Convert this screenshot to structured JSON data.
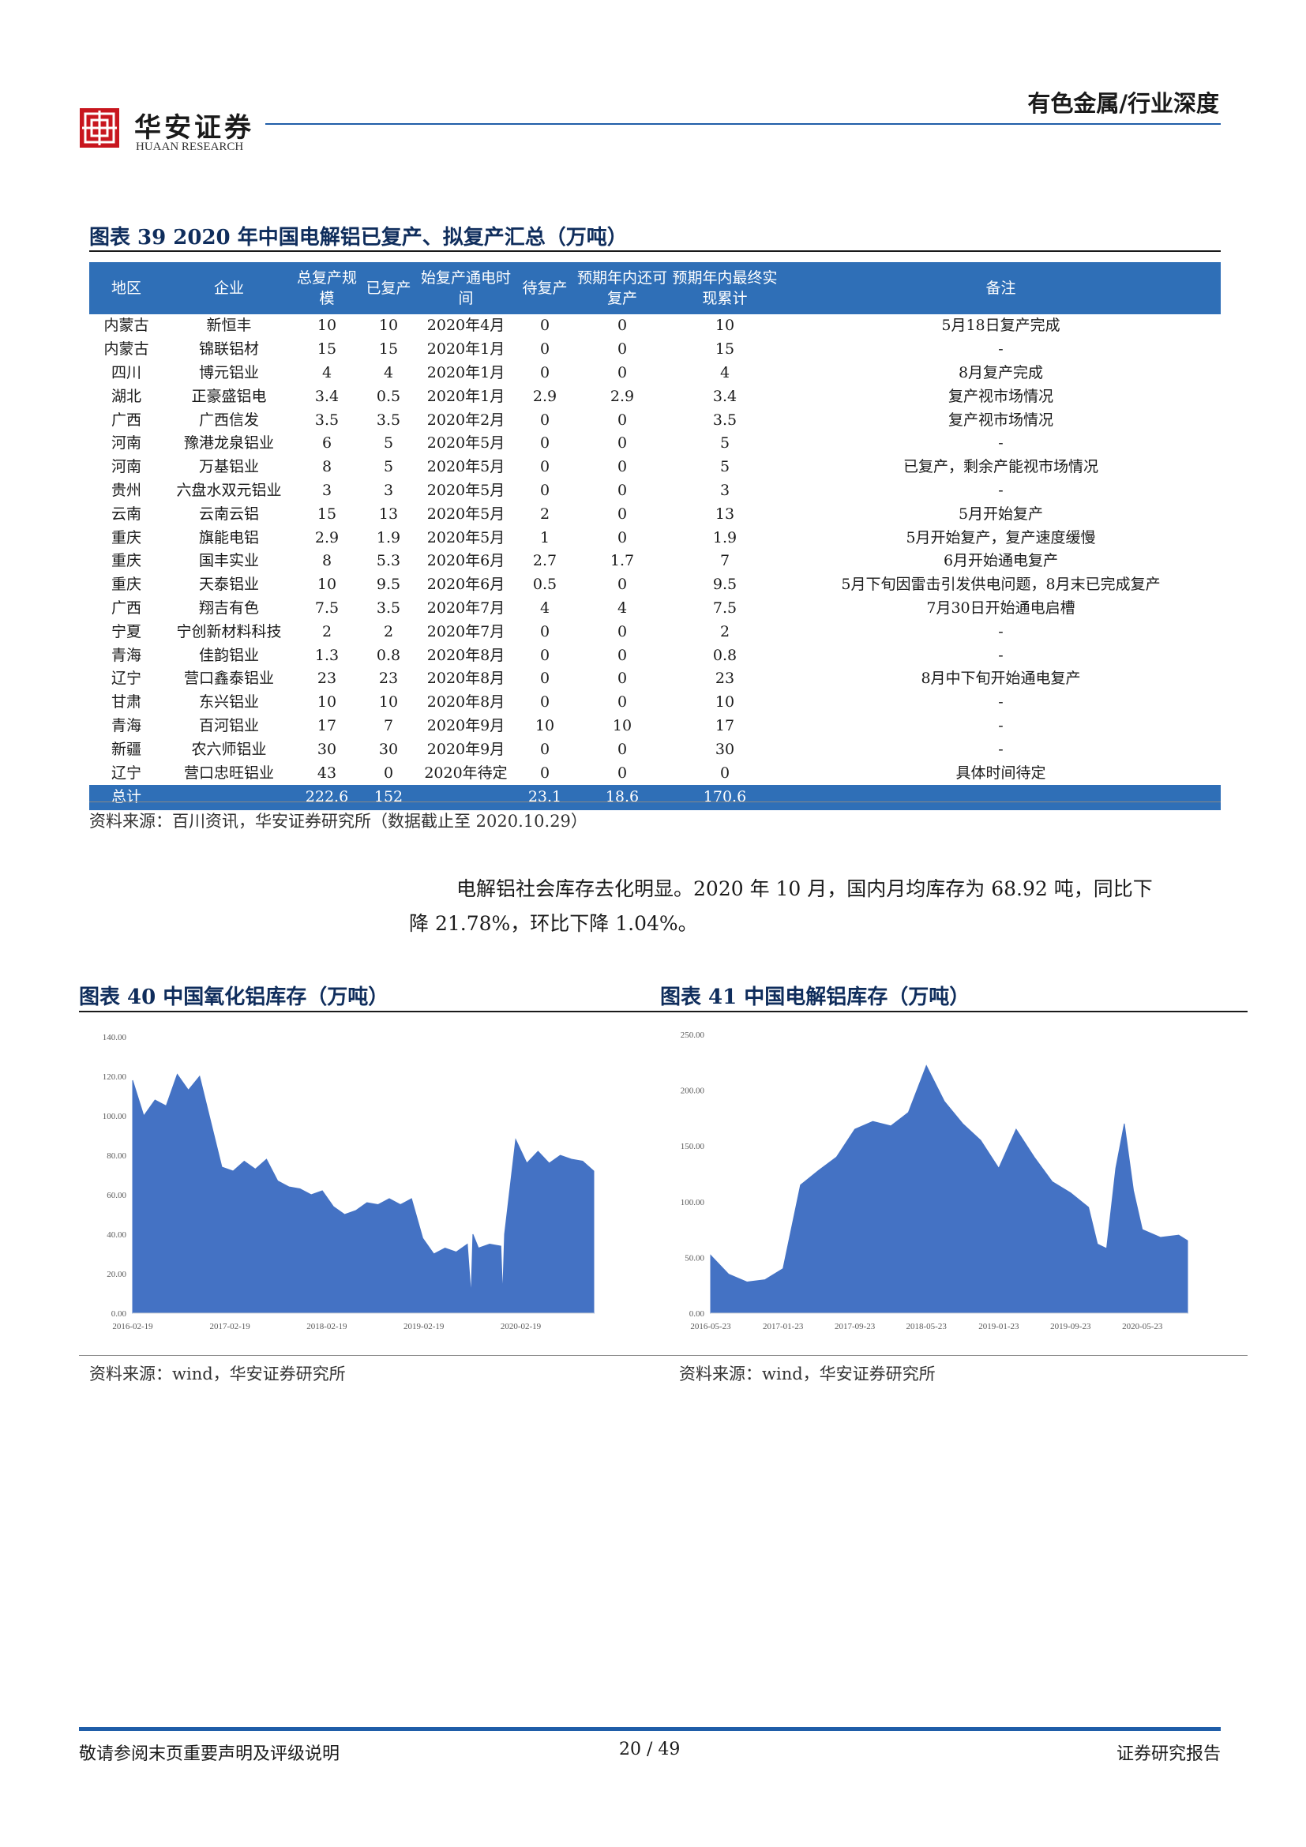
{
  "header": {
    "logo_cn": "华安证券",
    "logo_en": "HUAAN RESEARCH",
    "category": "有色金属/行业深度"
  },
  "table_section": {
    "title": "图表 39 2020 年中国电解铝已复产、拟复产汇总（万吨）",
    "columns": [
      "地区",
      "企业",
      "总复产规模",
      "已复产",
      "始复产通电时间",
      "待复产",
      "预期年内还可复产",
      "预期年内最终实现累计",
      "备注"
    ],
    "rows": [
      [
        "内蒙古",
        "新恒丰",
        "10",
        "10",
        "2020年4月",
        "0",
        "0",
        "10",
        "5月18日复产完成"
      ],
      [
        "内蒙古",
        "锦联铝材",
        "15",
        "15",
        "2020年1月",
        "0",
        "0",
        "15",
        "-"
      ],
      [
        "四川",
        "博元铝业",
        "4",
        "4",
        "2020年1月",
        "0",
        "0",
        "4",
        "8月复产完成"
      ],
      [
        "湖北",
        "正豪盛铝电",
        "3.4",
        "0.5",
        "2020年1月",
        "2.9",
        "2.9",
        "3.4",
        "复产视市场情况"
      ],
      [
        "广西",
        "广西信发",
        "3.5",
        "3.5",
        "2020年2月",
        "0",
        "0",
        "3.5",
        "复产视市场情况"
      ],
      [
        "河南",
        "豫港龙泉铝业",
        "6",
        "5",
        "2020年5月",
        "0",
        "0",
        "5",
        "-"
      ],
      [
        "河南",
        "万基铝业",
        "8",
        "5",
        "2020年5月",
        "0",
        "0",
        "5",
        "已复产，剩余产能视市场情况"
      ],
      [
        "贵州",
        "六盘水双元铝业",
        "3",
        "3",
        "2020年5月",
        "0",
        "0",
        "3",
        "-"
      ],
      [
        "云南",
        "云南云铝",
        "15",
        "13",
        "2020年5月",
        "2",
        "0",
        "13",
        "5月开始复产"
      ],
      [
        "重庆",
        "旗能电铝",
        "2.9",
        "1.9",
        "2020年5月",
        "1",
        "0",
        "1.9",
        "5月开始复产，复产速度缓慢"
      ],
      [
        "重庆",
        "国丰实业",
        "8",
        "5.3",
        "2020年6月",
        "2.7",
        "1.7",
        "7",
        "6月开始通电复产"
      ],
      [
        "重庆",
        "天泰铝业",
        "10",
        "9.5",
        "2020年6月",
        "0.5",
        "0",
        "9.5",
        "5月下旬因雷击引发供电问题，8月末已完成复产"
      ],
      [
        "广西",
        "翔吉有色",
        "7.5",
        "3.5",
        "2020年7月",
        "4",
        "4",
        "7.5",
        "7月30日开始通电启槽"
      ],
      [
        "宁夏",
        "宁创新材料科技",
        "2",
        "2",
        "2020年7月",
        "0",
        "0",
        "2",
        "-"
      ],
      [
        "青海",
        "佳韵铝业",
        "1.3",
        "0.8",
        "2020年8月",
        "0",
        "0",
        "0.8",
        "-"
      ],
      [
        "辽宁",
        "营口鑫泰铝业",
        "23",
        "23",
        "2020年8月",
        "0",
        "0",
        "23",
        "8月中下旬开始通电复产"
      ],
      [
        "甘肃",
        "东兴铝业",
        "10",
        "10",
        "2020年8月",
        "0",
        "0",
        "10",
        "-"
      ],
      [
        "青海",
        "百河铝业",
        "17",
        "7",
        "2020年9月",
        "10",
        "10",
        "17",
        "-"
      ],
      [
        "新疆",
        "农六师铝业",
        "30",
        "30",
        "2020年9月",
        "0",
        "0",
        "30",
        "-"
      ],
      [
        "辽宁",
        "营口忠旺铝业",
        "43",
        "0",
        "2020年待定",
        "0",
        "0",
        "0",
        "具体时间待定"
      ]
    ],
    "total": [
      "总计",
      "",
      "222.6",
      "152",
      "",
      "23.1",
      "18.6",
      "170.6",
      ""
    ],
    "source": "资料来源：百川资讯，华安证券研究所（数据截止至 2020.10.29）"
  },
  "paragraph": {
    "line1": "电解铝社会库存去化明显。2020 年 10 月，国内月均库存为 68.92 吨，同比下",
    "line2": "降 21.78%，环比下降 1.04%。"
  },
  "chart_data": [
    {
      "type": "area",
      "title": "图表 40 中国氧化铝库存（万吨）",
      "color": "#4472c4",
      "ylim": [
        0,
        140
      ],
      "yticks": [
        "140.00",
        "120.00",
        "100.00",
        "80.00",
        "60.00",
        "40.00",
        "20.00",
        "0.00"
      ],
      "xticks": [
        "2016-02-19",
        "2017-02-19",
        "2018-02-19",
        "2019-02-19",
        "2020-02-19"
      ],
      "xlim": [
        "2016-02-19",
        "2020-11-20"
      ],
      "series": [
        {
          "x": [
            "2016-02-19",
            "2016-04-01",
            "2016-05-13",
            "2016-06-24",
            "2016-08-05",
            "2016-09-16",
            "2016-10-28",
            "2016-12-09",
            "2017-01-20",
            "2017-03-03",
            "2017-04-14",
            "2017-05-26",
            "2017-07-07",
            "2017-08-18",
            "2017-09-29",
            "2017-11-10",
            "2017-12-22",
            "2018-02-02",
            "2018-03-16",
            "2018-04-27",
            "2018-06-08",
            "2018-07-20",
            "2018-08-31",
            "2018-10-12",
            "2018-11-23",
            "2019-01-04",
            "2019-02-15",
            "2019-03-29",
            "2019-05-10",
            "2019-06-21",
            "2019-08-02",
            "2019-08-16",
            "2019-08-23",
            "2019-09-13",
            "2019-10-25",
            "2019-12-06",
            "2019-12-13",
            "2019-12-20",
            "2020-01-31",
            "2020-03-13",
            "2020-04-24",
            "2020-06-05",
            "2020-07-17",
            "2020-08-28",
            "2020-10-09",
            "2020-11-20"
          ],
          "y": [
            118,
            100,
            108,
            105,
            121,
            113,
            120,
            97,
            74,
            72,
            77,
            73,
            78,
            67,
            64,
            63,
            60,
            62,
            54,
            50,
            52,
            56,
            55,
            58,
            55,
            58,
            38,
            30,
            33,
            31,
            35,
            9,
            40,
            33,
            35,
            34,
            9,
            40,
            88,
            76,
            82,
            76,
            80,
            78,
            77,
            72
          ]
        }
      ]
    },
    {
      "type": "area",
      "title": "图表 41 中国电解铝库存（万吨）",
      "color": "#4472c4",
      "ylim": [
        0,
        250
      ],
      "yticks": [
        "250.00",
        "200.00",
        "150.00",
        "100.00",
        "50.00",
        "0.00"
      ],
      "xticks": [
        "2016-05-23",
        "2017-01-23",
        "2017-09-23",
        "2018-05-23",
        "2019-01-23",
        "2019-09-23",
        "2020-05-23"
      ],
      "xlim": [
        "2016-05-23",
        "2020-10-23"
      ],
      "series": [
        {
          "x": [
            "2016-05-23",
            "2016-07-23",
            "2016-09-23",
            "2016-11-23",
            "2017-01-23",
            "2017-03-23",
            "2017-05-23",
            "2017-07-23",
            "2017-09-23",
            "2017-11-23",
            "2018-01-23",
            "2018-03-23",
            "2018-05-23",
            "2018-07-23",
            "2018-09-23",
            "2018-11-23",
            "2019-01-23",
            "2019-03-23",
            "2019-05-23",
            "2019-07-23",
            "2019-09-23",
            "2019-11-23",
            "2019-12-23",
            "2020-01-23",
            "2020-02-23",
            "2020-03-23",
            "2020-04-23",
            "2020-05-23",
            "2020-07-23",
            "2020-09-23",
            "2020-10-23"
          ],
          "y": [
            52,
            35,
            28,
            30,
            40,
            115,
            128,
            140,
            165,
            172,
            168,
            180,
            222,
            190,
            170,
            155,
            130,
            165,
            140,
            118,
            108,
            95,
            62,
            58,
            130,
            170,
            110,
            75,
            68,
            70,
            65
          ]
        }
      ]
    }
  ],
  "chart_sources": [
    "资料来源：wind，华安证券研究所",
    "资料来源：wind，华安证券研究所"
  ],
  "footer": {
    "left": "敬请参阅末页重要声明及评级说明",
    "page": "20 / 49",
    "right": "证券研究报告"
  }
}
